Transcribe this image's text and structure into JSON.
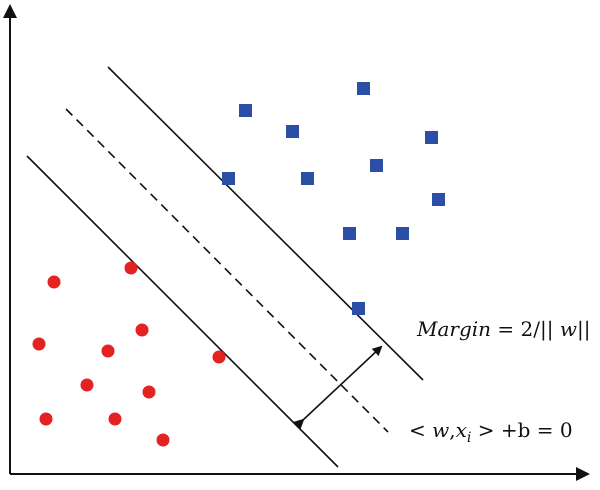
{
  "colors": {
    "class_positive": "#2b4fa6",
    "class_negative": "#e32222",
    "lines": "#111111",
    "background": "#ffffff"
  },
  "class_positive_marker": "square",
  "class_negative_marker": "circle",
  "decision_boundary_style": "dashed",
  "margin_boundary_style": "solid",
  "labels": {
    "margin_word": "Margin",
    "margin_eq": " = 2/|| ",
    "margin_w": "w",
    "margin_end": "||",
    "hyperplane_open": "< ",
    "hyperplane_w": "w",
    "hyperplane_comma": ",",
    "hyperplane_x": "x",
    "hyperplane_sub": "i",
    "hyperplane_end": " > +b = 0"
  }
}
